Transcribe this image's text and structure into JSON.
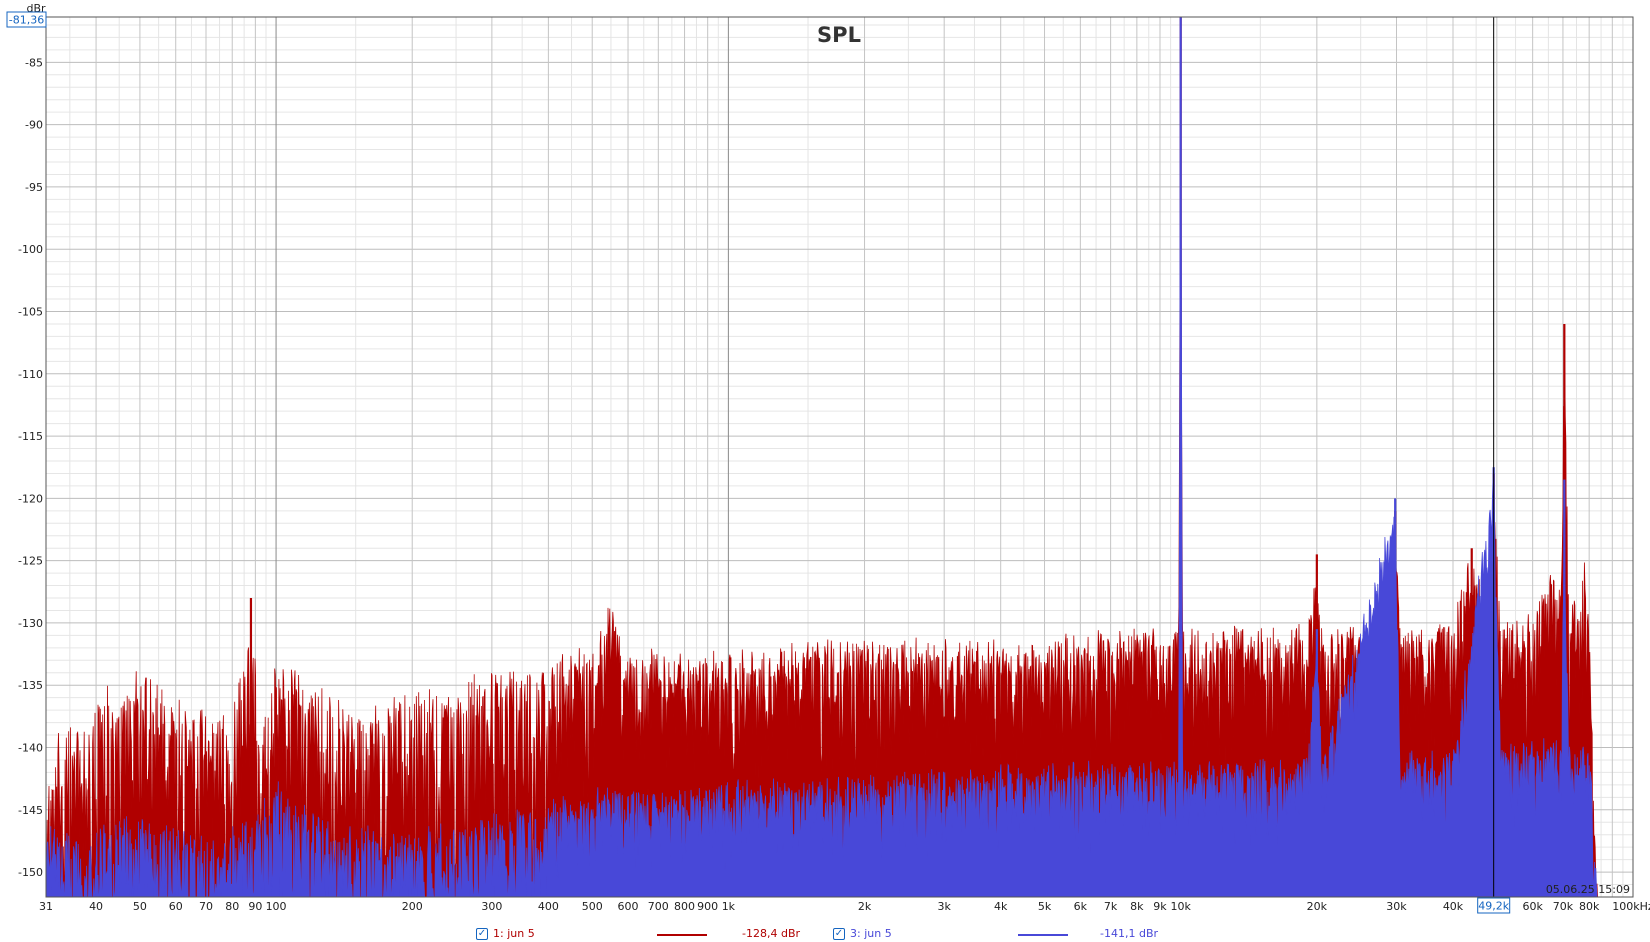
{
  "chart_data": {
    "type": "line",
    "title": "SPL",
    "ylabel": "dBr",
    "xunit": "kHz",
    "xlim": [
      31,
      100000
    ],
    "ylim": [
      -152,
      -81.36
    ],
    "xscale": "log",
    "grid": true,
    "cursor": {
      "y_readout": "-81,36",
      "x": 49200,
      "x_readout": "49,2k"
    },
    "timestamp": "05.06.25 15:09",
    "yticks": [
      -85,
      -90,
      -95,
      -100,
      -105,
      -110,
      -115,
      -120,
      -125,
      -130,
      -135,
      -140,
      -145,
      -150
    ],
    "xticks": [
      {
        "v": 31,
        "t": "31"
      },
      {
        "v": 40,
        "t": "40"
      },
      {
        "v": 50,
        "t": "50"
      },
      {
        "v": 60,
        "t": "60"
      },
      {
        "v": 70,
        "t": "70"
      },
      {
        "v": 80,
        "t": "80"
      },
      {
        "v": 90,
        "t": "90"
      },
      {
        "v": 100,
        "t": "100"
      },
      {
        "v": 200,
        "t": "200"
      },
      {
        "v": 300,
        "t": "300"
      },
      {
        "v": 400,
        "t": "400"
      },
      {
        "v": 500,
        "t": "500"
      },
      {
        "v": 600,
        "t": "600"
      },
      {
        "v": 700,
        "t": "700"
      },
      {
        "v": 800,
        "t": "800"
      },
      {
        "v": 900,
        "t": "900"
      },
      {
        "v": 1000,
        "t": "1k"
      },
      {
        "v": 2000,
        "t": "2k"
      },
      {
        "v": 3000,
        "t": "3k"
      },
      {
        "v": 4000,
        "t": "4k"
      },
      {
        "v": 5000,
        "t": "5k"
      },
      {
        "v": 6000,
        "t": "6k"
      },
      {
        "v": 7000,
        "t": "7k"
      },
      {
        "v": 8000,
        "t": "8k"
      },
      {
        "v": 9000,
        "t": "9k"
      },
      {
        "v": 10000,
        "t": "10k"
      },
      {
        "v": 20000,
        "t": "20k"
      },
      {
        "v": 30000,
        "t": "30k"
      },
      {
        "v": 40000,
        "t": "40k"
      },
      {
        "v": 60000,
        "t": "60k"
      },
      {
        "v": 70000,
        "t": "70k"
      },
      {
        "v": 80000,
        "t": "80k"
      },
      {
        "v": 100000,
        "t": "100kHz"
      }
    ],
    "series": [
      {
        "name": "1: jun 5",
        "readout": "-128,4 dBr",
        "color": "#b00000",
        "points": [
          [
            31,
            -141
          ],
          [
            34,
            -137
          ],
          [
            38,
            -138
          ],
          [
            42,
            -134
          ],
          [
            45,
            -137
          ],
          [
            48,
            -133
          ],
          [
            55,
            -134
          ],
          [
            62,
            -136
          ],
          [
            70,
            -137
          ],
          [
            80,
            -137
          ],
          [
            88,
            -128
          ],
          [
            92,
            -138
          ],
          [
            100,
            -133
          ],
          [
            120,
            -134
          ],
          [
            150,
            -137
          ],
          [
            200,
            -135
          ],
          [
            250,
            -135
          ],
          [
            300,
            -133
          ],
          [
            400,
            -132
          ],
          [
            500,
            -131
          ],
          [
            550,
            -128
          ],
          [
            600,
            -132
          ],
          [
            800,
            -132
          ],
          [
            1000,
            -132
          ],
          [
            1500,
            -131
          ],
          [
            2000,
            -131
          ],
          [
            3000,
            -131
          ],
          [
            5000,
            -131
          ],
          [
            7000,
            -130
          ],
          [
            9000,
            -130
          ],
          [
            9900,
            -130
          ],
          [
            10000,
            -81.36
          ],
          [
            10100,
            -130
          ],
          [
            15000,
            -130
          ],
          [
            19000,
            -130
          ],
          [
            20000,
            -124.5
          ],
          [
            20600,
            -130
          ],
          [
            28000,
            -130
          ],
          [
            29800,
            -121
          ],
          [
            30600,
            -130
          ],
          [
            40000,
            -129
          ],
          [
            44000,
            -124
          ],
          [
            48000,
            -129
          ],
          [
            49200,
            -118
          ],
          [
            51000,
            -129
          ],
          [
            60000,
            -128
          ],
          [
            66000,
            -125
          ],
          [
            69500,
            -125
          ],
          [
            70500,
            -106
          ],
          [
            72000,
            -127
          ],
          [
            75000,
            -127
          ],
          [
            78000,
            -124
          ],
          [
            79000,
            -127
          ],
          [
            80000,
            -126
          ],
          [
            81000,
            -137
          ],
          [
            82500,
            -146
          ],
          [
            84000,
            -152
          ]
        ]
      },
      {
        "name": "3: jun 5",
        "readout": "-141,1 dBr",
        "color": "#4848d8",
        "points": [
          [
            31,
            -146
          ],
          [
            34,
            -146
          ],
          [
            38,
            -147
          ],
          [
            42,
            -145
          ],
          [
            48,
            -145
          ],
          [
            55,
            -146
          ],
          [
            62,
            -146
          ],
          [
            70,
            -147
          ],
          [
            80,
            -146
          ],
          [
            90,
            -145
          ],
          [
            100,
            -142
          ],
          [
            120,
            -145
          ],
          [
            150,
            -146
          ],
          [
            200,
            -146
          ],
          [
            300,
            -145
          ],
          [
            400,
            -144
          ],
          [
            500,
            -143
          ],
          [
            700,
            -143
          ],
          [
            1000,
            -142.5
          ],
          [
            2000,
            -142
          ],
          [
            3000,
            -141.5
          ],
          [
            5000,
            -141
          ],
          [
            9900,
            -141
          ],
          [
            10000,
            -81.36
          ],
          [
            10100,
            -141
          ],
          [
            19000,
            -140.5
          ],
          [
            20000,
            -130.5
          ],
          [
            20600,
            -140.5
          ],
          [
            29800,
            -120
          ],
          [
            30600,
            -140
          ],
          [
            40000,
            -140
          ],
          [
            49200,
            -117.5
          ],
          [
            51000,
            -139.5
          ],
          [
            60000,
            -139
          ],
          [
            69500,
            -139
          ],
          [
            70500,
            -118.5
          ],
          [
            72000,
            -139
          ],
          [
            80000,
            -139.5
          ],
          [
            81000,
            -142
          ],
          [
            82500,
            -148
          ],
          [
            84000,
            -152
          ]
        ]
      }
    ]
  }
}
